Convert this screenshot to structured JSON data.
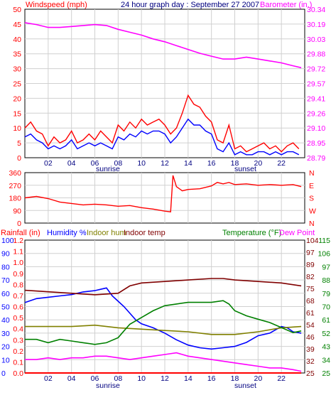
{
  "chart_data": [
    {
      "type": "line",
      "title": "24 hour graph day : September 27 2007",
      "left_axis_label": "Windspeed (mph)",
      "right_axis_label": "Barometer (in.)",
      "left_ylim": [
        0,
        50
      ],
      "left_ticks": [
        "0",
        "5",
        "10",
        "15",
        "20",
        "25",
        "30",
        "35",
        "40",
        "45",
        "50"
      ],
      "right_ylim": [
        28.79,
        30.34
      ],
      "right_ticks": [
        "28.79",
        "28.95",
        "29.10",
        "29.26",
        "29.41",
        "29.57",
        "29.72",
        "29.88",
        "30.03",
        "30.19",
        "30.34"
      ],
      "x_range": [
        0,
        24
      ],
      "x_ticks": [
        "02",
        "04",
        "06",
        "08",
        "10",
        "12",
        "14",
        "16",
        "18",
        "20",
        "22"
      ],
      "x_notes": [
        {
          "label": "sunrise",
          "x": 7.0
        },
        {
          "label": "sunset",
          "x": 19.0
        }
      ],
      "colors": {
        "gust": "#ff0000",
        "avg": "#0000ff",
        "barometer": "#ff00ff",
        "left_text": "#ff0000",
        "right_text": "#ff00ff"
      },
      "series": [
        {
          "key": "gust",
          "axis": "left",
          "x": [
            0,
            0.5,
            1,
            1.5,
            2,
            2.5,
            3,
            3.5,
            4,
            4.5,
            5,
            5.5,
            6,
            6.5,
            7,
            7.5,
            8,
            8.5,
            9,
            9.5,
            10,
            10.5,
            11,
            11.5,
            12,
            12.5,
            13,
            13.5,
            14,
            14.5,
            15,
            15.5,
            16,
            16.5,
            17,
            17.5,
            18,
            18.5,
            19,
            19.5,
            20,
            20.5,
            21,
            21.5,
            22,
            22.5,
            23,
            23.5
          ],
          "values": [
            10,
            12,
            9,
            8,
            4,
            7,
            5,
            6,
            9,
            5,
            6,
            8,
            6,
            9,
            7,
            5,
            11,
            9,
            12,
            10,
            13,
            11,
            12,
            13,
            11,
            8,
            10,
            15,
            21,
            18,
            17,
            14,
            12,
            6,
            5,
            11,
            3,
            4,
            2,
            3,
            4,
            5,
            3,
            4,
            2,
            4,
            5,
            3
          ]
        },
        {
          "key": "avg",
          "axis": "left",
          "x": [
            0,
            0.5,
            1,
            1.5,
            2,
            2.5,
            3,
            3.5,
            4,
            4.5,
            5,
            5.5,
            6,
            6.5,
            7,
            7.5,
            8,
            8.5,
            9,
            9.5,
            10,
            10.5,
            11,
            11.5,
            12,
            12.5,
            13,
            13.5,
            14,
            14.5,
            15,
            15.5,
            16,
            16.5,
            17,
            17.5,
            18,
            18.5,
            19,
            19.5,
            20,
            20.5,
            21,
            21.5,
            22,
            22.5,
            23,
            23.5
          ],
          "values": [
            7,
            8,
            6,
            5,
            3,
            4,
            3,
            4,
            6,
            3,
            4,
            5,
            4,
            5,
            4,
            3,
            7,
            6,
            8,
            7,
            9,
            8,
            9,
            9,
            8,
            5,
            7,
            10,
            13,
            11,
            11,
            9,
            8,
            3,
            2,
            5,
            1,
            2,
            1,
            1,
            2,
            2,
            1,
            2,
            1,
            2,
            2,
            1
          ]
        },
        {
          "key": "barometer",
          "axis": "right",
          "x": [
            0,
            1,
            2,
            3,
            4,
            5,
            6,
            7,
            8,
            9,
            10,
            11,
            12,
            13,
            14,
            15,
            16,
            17,
            18,
            19,
            20,
            21,
            22,
            23,
            23.7
          ],
          "values": [
            30.2,
            30.18,
            30.15,
            30.15,
            30.16,
            30.17,
            30.18,
            30.17,
            30.13,
            30.1,
            30.07,
            30.03,
            30.0,
            29.96,
            29.92,
            29.88,
            29.85,
            29.82,
            29.82,
            29.84,
            29.82,
            29.8,
            29.78,
            29.75,
            29.73
          ]
        }
      ]
    },
    {
      "type": "line",
      "title": "",
      "left_ylim": [
        0,
        360
      ],
      "left_ticks": [
        "0",
        "90",
        "180",
        "270",
        "360"
      ],
      "right_ticks": [
        "N",
        "E",
        "S",
        "W",
        "N"
      ],
      "x_range": [
        0,
        24
      ],
      "colors": {
        "direction": "#ff0000",
        "left_text": "#ff0000",
        "right_text": "#ff0000"
      },
      "series": [
        {
          "key": "direction",
          "x": [
            0,
            1,
            2,
            3,
            4,
            5,
            6,
            7,
            8,
            9,
            10,
            11,
            12,
            12.5,
            12.7,
            13,
            13.5,
            14,
            15,
            16,
            16.5,
            17,
            17.5,
            18,
            19,
            20,
            21,
            22,
            23,
            23.7
          ],
          "values": [
            180,
            190,
            175,
            150,
            140,
            130,
            135,
            130,
            120,
            125,
            110,
            100,
            85,
            80,
            340,
            260,
            230,
            240,
            245,
            265,
            290,
            280,
            290,
            275,
            280,
            270,
            275,
            270,
            275,
            260
          ]
        }
      ]
    },
    {
      "type": "line",
      "title": "",
      "left_labels": [
        "Rainfall (in)",
        "Humidity %",
        "Indoor hum",
        "Indoor temp"
      ],
      "right_labels": [
        "Temperature (°F)",
        "Dew Point"
      ],
      "rain_ylim": [
        0,
        1.2
      ],
      "rain_ticks": [
        "0.0",
        "0.1",
        "0.2",
        "0.3",
        "0.4",
        "0.5",
        "0.6",
        "0.7",
        "0.8",
        "0.9",
        "1.0",
        "1.1",
        "1.2"
      ],
      "humidity_ylim": [
        0,
        100
      ],
      "humidity_ticks": [
        "0",
        "10",
        "20",
        "30",
        "40",
        "50",
        "60",
        "70",
        "80",
        "90",
        "100"
      ],
      "temp_ylim_a": [
        25,
        104
      ],
      "temp_ticks_a": [
        "25",
        "32",
        "39",
        "46",
        "54",
        "61",
        "68",
        "75",
        "82",
        "89",
        "97",
        "104"
      ],
      "temp_ylim_b": [
        25,
        115
      ],
      "temp_ticks_b": [
        "25",
        "34",
        "43",
        "52",
        "61",
        "70",
        "79",
        "88",
        "97",
        "106",
        "115"
      ],
      "x_range": [
        0,
        24
      ],
      "x_ticks": [
        "02",
        "04",
        "06",
        "08",
        "10",
        "12",
        "14",
        "16",
        "18",
        "20",
        "22"
      ],
      "x_notes": [
        {
          "label": "sunrise",
          "x": 7.0
        },
        {
          "label": "sunset",
          "x": 19.0
        }
      ],
      "colors": {
        "rain": "#ff0000",
        "humidity": "#0000ff",
        "indoor_hum": "#808000",
        "indoor_temp": "#800000",
        "temperature": "#008000",
        "dewpoint": "#ff00ff",
        "rain_text": "#ff0000",
        "humidity_text": "#0000ff",
        "indoor_hum_text": "#808000",
        "indoor_temp_text": "#800000",
        "temp_text": "#008000",
        "dew_text": "#ff00ff"
      },
      "series": [
        {
          "key": "humidity",
          "axis": "humidity",
          "x": [
            0,
            1,
            2,
            3,
            4,
            5,
            6,
            6.5,
            7,
            7.5,
            8,
            8.5,
            9,
            9.5,
            10,
            11,
            12,
            13,
            14,
            15,
            16,
            17,
            18,
            19,
            20,
            21,
            22,
            22.5,
            23,
            23.7
          ],
          "values": [
            53,
            56,
            57,
            58,
            59,
            61,
            62,
            63,
            64,
            58,
            54,
            50,
            45,
            40,
            37,
            34,
            30,
            25,
            21,
            19,
            18,
            19,
            20,
            23,
            28,
            30,
            35,
            34,
            31,
            30
          ]
        },
        {
          "key": "indoor_hum",
          "axis": "humidity",
          "x": [
            0,
            2,
            4,
            6,
            7,
            8,
            10,
            12,
            14,
            16,
            18,
            20,
            22,
            23.7
          ],
          "values": [
            35,
            35,
            35,
            36,
            35,
            34,
            33,
            32,
            31,
            29,
            29,
            31,
            34,
            35
          ]
        },
        {
          "key": "indoor_temp",
          "axis": "temp_b",
          "x": [
            0,
            2,
            4,
            6,
            8,
            9,
            10,
            12,
            14,
            16,
            17,
            18,
            20,
            22,
            23.7
          ],
          "values": [
            81,
            80,
            79,
            78,
            79,
            84,
            86,
            87,
            88,
            89,
            89,
            88,
            87,
            86,
            84
          ]
        },
        {
          "key": "temperature",
          "axis": "temp_a",
          "x": [
            0,
            1,
            2,
            3,
            4,
            5,
            6,
            7,
            8,
            8.5,
            9,
            10,
            11,
            12,
            13,
            14,
            15,
            16,
            17,
            17.5,
            18,
            19,
            20,
            21,
            22,
            23,
            23.7
          ],
          "values": [
            45,
            45,
            43,
            45,
            44,
            43,
            42,
            43,
            46,
            50,
            54,
            58,
            62,
            65,
            66,
            67,
            67,
            67,
            68,
            66,
            62,
            59,
            57,
            55,
            52,
            49,
            50
          ]
        },
        {
          "key": "dewpoint",
          "axis": "temp_a",
          "x": [
            0,
            1,
            2,
            3,
            4,
            5,
            6,
            7,
            8,
            9,
            10,
            11,
            12,
            13,
            14,
            15,
            16,
            17,
            18,
            19,
            20,
            21,
            22,
            23,
            23.7
          ],
          "values": [
            33,
            33,
            34,
            33,
            34,
            34,
            35,
            35,
            34,
            33,
            34,
            35,
            36,
            37,
            35,
            34,
            33,
            32,
            31,
            30,
            29,
            28,
            28,
            27,
            26
          ]
        },
        {
          "key": "rain",
          "axis": "rain",
          "x": [
            0,
            23.7
          ],
          "values": [
            0.0,
            0.0
          ]
        }
      ]
    }
  ]
}
